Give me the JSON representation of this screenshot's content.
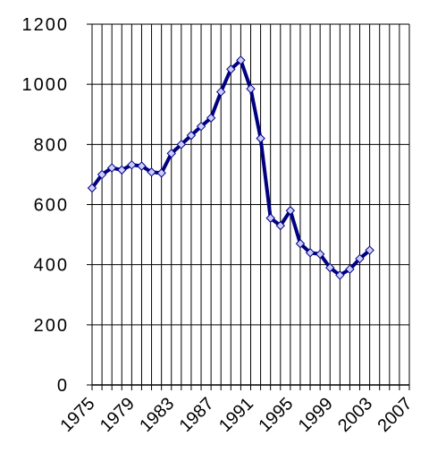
{
  "chart_data": {
    "type": "line",
    "x": [
      1975,
      1976,
      1977,
      1978,
      1979,
      1980,
      1981,
      1982,
      1983,
      1984,
      1985,
      1986,
      1987,
      1988,
      1989,
      1990,
      1991,
      1992,
      1993,
      1994,
      1995,
      1996,
      1997,
      1998,
      1999,
      2000,
      2001,
      2002,
      2003
    ],
    "series": [
      {
        "color": "#000080",
        "marker_fill": "#ccccff",
        "values": [
          655,
          700,
          722,
          715,
          732,
          728,
          708,
          705,
          770,
          800,
          830,
          860,
          888,
          975,
          1050,
          1080,
          985,
          820,
          555,
          530,
          580,
          470,
          440,
          435,
          390,
          365,
          385,
          420,
          448
        ]
      }
    ],
    "xlim": [
      1975,
      2007
    ],
    "xticks": [
      1975,
      1979,
      1983,
      1987,
      1991,
      1995,
      1999,
      2003,
      2007
    ],
    "x_minor_ticks": [
      1975,
      1976,
      1977,
      1978,
      1979,
      1980,
      1981,
      1982,
      1983,
      1984,
      1985,
      1986,
      1987,
      1988,
      1989,
      1990,
      1991,
      1992,
      1993,
      1994,
      1995,
      1996,
      1997,
      1998,
      1999,
      2000,
      2001,
      2002,
      2003,
      2004,
      2005,
      2006,
      2007
    ],
    "ylim": [
      0,
      1200
    ],
    "yticks": [
      0,
      200,
      400,
      600,
      800,
      1000,
      1200
    ],
    "grid": true
  }
}
